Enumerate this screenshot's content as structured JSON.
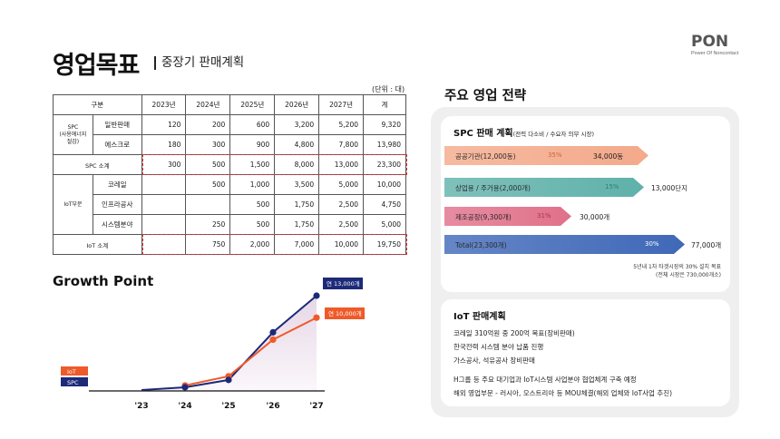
{
  "page": {
    "title": "영업목표",
    "subtitle": "중장기 판매계획",
    "logo_mark": "PON",
    "logo_sub": "Power Of Noncontact"
  },
  "table": {
    "unit": "(단위 : 대)",
    "headers": [
      "구분",
      "2023년",
      "2024년",
      "2025년",
      "2026년",
      "2027년",
      "계"
    ],
    "spc_group": "SPC\n(사용에너지\n절감)",
    "spc_rows": [
      {
        "label": "일반판매",
        "values": [
          "120",
          "200",
          "600",
          "3,200",
          "5,200",
          "9,320"
        ]
      },
      {
        "label": "에스크로",
        "values": [
          "180",
          "300",
          "900",
          "4,800",
          "7,800",
          "13,980"
        ]
      }
    ],
    "spc_subtotal": {
      "label": "SPC 소계",
      "values": [
        "300",
        "500",
        "1,500",
        "8,000",
        "13,000",
        "23,300"
      ]
    },
    "iot_group": "IoT부문",
    "iot_rows": [
      {
        "label": "코레일",
        "values": [
          "",
          "500",
          "1,000",
          "3,500",
          "5,000",
          "10,000"
        ]
      },
      {
        "label": "인프라공사",
        "values": [
          "",
          "",
          "500",
          "1,750",
          "2,500",
          "4,750"
        ]
      },
      {
        "label": "시스템분야",
        "values": [
          "",
          "250",
          "500",
          "1,750",
          "2,500",
          "5,000"
        ]
      }
    ],
    "iot_subtotal": {
      "label": "IoT 소계",
      "values": [
        "",
        "750",
        "2,000",
        "7,000",
        "10,000",
        "19,750"
      ]
    }
  },
  "growth": {
    "title": "Growth Point",
    "legend_iot": "IoT",
    "legend_spc": "SPC",
    "callout_spc": "연 13,000개",
    "callout_iot": "연 10,000개",
    "x_labels": [
      "'23",
      "'24",
      "'25",
      "'26",
      "'27"
    ]
  },
  "chart_data": {
    "type": "line",
    "title": "Growth Point",
    "categories": [
      "'23",
      "'24",
      "'25",
      "'26",
      "'27"
    ],
    "series": [
      {
        "name": "SPC",
        "color": "#1c2a78",
        "values": [
          300,
          500,
          1500,
          8000,
          13000
        ]
      },
      {
        "name": "IoT",
        "color": "#ef5a2a",
        "values": [
          0,
          750,
          2000,
          7000,
          10000
        ]
      }
    ],
    "ylim": [
      0,
      14000
    ],
    "grid": false,
    "legend_position": "left"
  },
  "strategy": {
    "title": "주요 영업 전략",
    "spc_head": "SPC 판매 계획",
    "spc_head_note": "(전력 다소비 / 수요자 의무 시장)",
    "bars": [
      {
        "label": "공공기관(12,000동)",
        "pct": "35%",
        "total": "34,000동",
        "color": "#f4a98a",
        "pct_color": "#c9653c"
      },
      {
        "label": "상업용 / 주거용(2,000개)",
        "pct": "15%",
        "total": "13,000단지",
        "color": "#5fb1aa",
        "pct_color": "#2f7b75"
      },
      {
        "label": "제조공장(9,300개)",
        "pct": "31%",
        "total": "30,000개",
        "color": "#e0708a",
        "pct_color": "#b0314f"
      },
      {
        "label": "Total(23,300개)",
        "pct": "30%",
        "total": "77,000개",
        "color": "#3f68b8",
        "pct_color": "#ffffff"
      }
    ],
    "footnote_1": "5년내 1차 타겟시장의 30% 설치 목표",
    "footnote_2": "(전체 시장은 730,000개소)",
    "iot_head": "IoT 판매계획",
    "iot_lines": [
      "코레일 310억원 중 200억 목표(장비판매)",
      "한국전력 시스템 분야 납품 진행",
      "가스공사, 석유공사 장비판매",
      "H그룹 등 주요 대기업과 IoT시스템 사업분야 협업체계 구축 예정",
      "해외 영업부문 - 러시아, 오스트리아 등 MOU체결(해외 업체와 IoT사업 추진)"
    ]
  }
}
